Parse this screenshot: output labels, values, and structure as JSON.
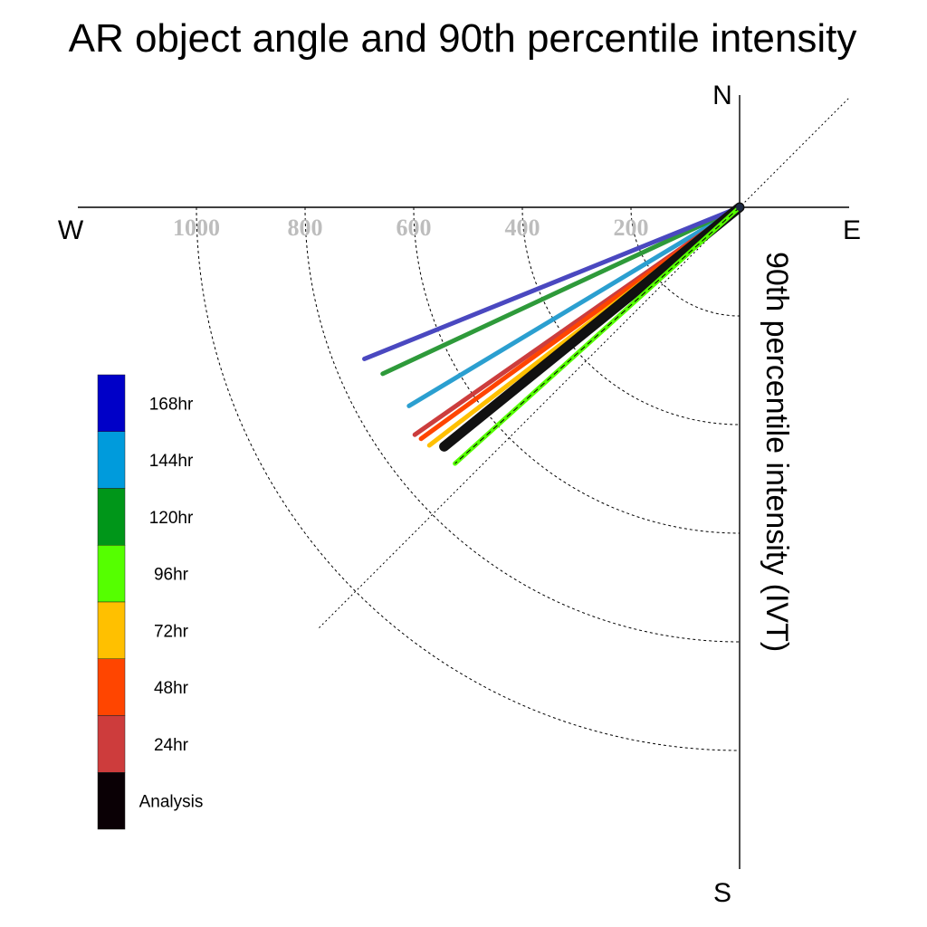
{
  "chart_data": {
    "type": "polar-vector",
    "title": "AR object angle and 90th percentile intensity",
    "ylabel": "90th percentile intensity (IVT)",
    "compass": {
      "north": "N",
      "south": "S",
      "east": "E",
      "west": "W"
    },
    "radial_ticks": [
      200,
      400,
      600,
      800,
      1000
    ],
    "radial_tick_labels": [
      "200",
      "400",
      "600",
      "800",
      "1000"
    ],
    "reference_angle_deg": 45,
    "legend_placement": "left",
    "series": [
      {
        "name": "144hr",
        "color": "#2b9fd0",
        "intensity": 710,
        "angle_deg": 211
      },
      {
        "name": "120hr",
        "color": "#2e9a3a",
        "intensity": 725,
        "angle_deg": 205
      },
      {
        "name": "168hr",
        "color": "#4a48c0",
        "intensity": 745,
        "angle_deg": 202
      },
      {
        "name": "24hr",
        "color": "#cc3d3d",
        "intensity": 730,
        "angle_deg": 215
      },
      {
        "name": "48hr",
        "color": "#ff4500",
        "intensity": 725,
        "angle_deg": 216
      },
      {
        "name": "72hr",
        "color": "#ffc000",
        "intensity": 720,
        "angle_deg": 217.5
      },
      {
        "name": "Analysis",
        "color": "#111111",
        "intensity": 700,
        "angle_deg": 219
      },
      {
        "name": "96hr",
        "color": "#55ff00",
        "intensity": 705,
        "angle_deg": 222
      }
    ]
  },
  "legend": [
    {
      "label": "168hr",
      "color": "#0000c8"
    },
    {
      "label": "144hr",
      "color": "#009bdc"
    },
    {
      "label": "120hr",
      "color": "#009619"
    },
    {
      "label": "96hr",
      "color": "#55ff00"
    },
    {
      "label": "72hr",
      "color": "#ffc000"
    },
    {
      "label": "48hr",
      "color": "#ff4500"
    },
    {
      "label": "24hr",
      "color": "#cd3c3c"
    },
    {
      "label": "Analysis",
      "color": "#0a0005"
    }
  ]
}
